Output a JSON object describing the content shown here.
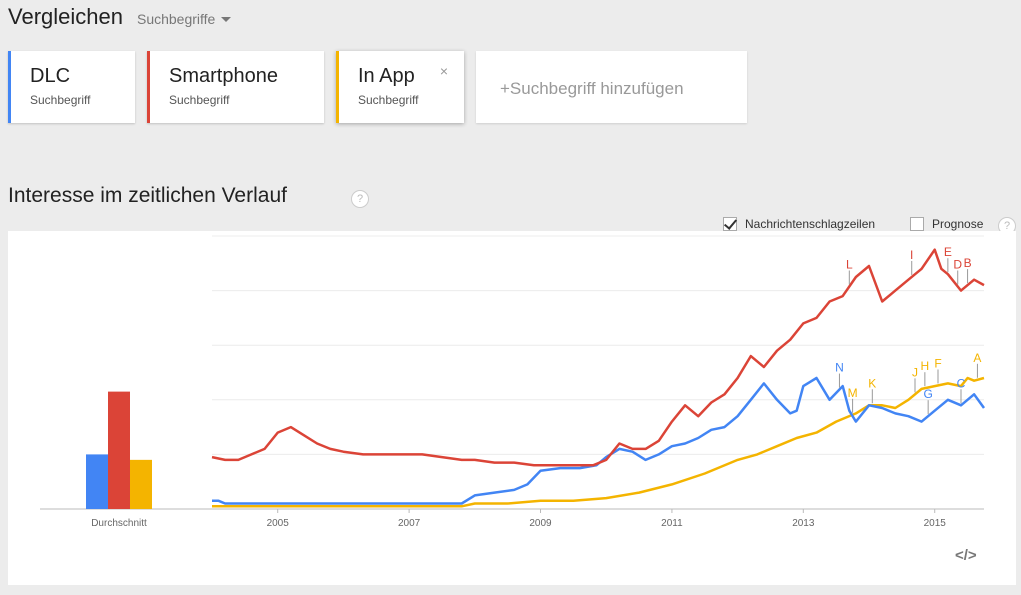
{
  "header": {
    "title": "Vergleichen",
    "mode": "Suchbegriffe"
  },
  "terms": [
    {
      "name": "DLC",
      "kind": "Suchbegriff",
      "color": "#4285f4"
    },
    {
      "name": "Smartphone",
      "kind": "Suchbegriff",
      "color": "#db4437"
    },
    {
      "name": "In App",
      "kind": "Suchbegriff",
      "color": "#f4b400",
      "remove": "×"
    }
  ],
  "add_term": "+Suchbegriff hinzufügen",
  "section": {
    "title": "Interesse im zeitlichen Verlauf",
    "help": "?"
  },
  "options": {
    "headlines": "Nachrichtenschlagzeilen",
    "headlines_checked": true,
    "forecast": "Prognose",
    "forecast_checked": false,
    "help": "?"
  },
  "embed_icon": "</>",
  "chart_data": {
    "type": "line",
    "xlim": [
      2004.0,
      2015.75
    ],
    "ylim": [
      0,
      100
    ],
    "x_ticks": [
      2005,
      2007,
      2009,
      2011,
      2013,
      2015
    ],
    "x_tick_labels": [
      "2005",
      "2007",
      "2009",
      "2011",
      "2013",
      "2015"
    ],
    "grid": true,
    "average": {
      "label": "Durchschnitt",
      "values": [
        20,
        43,
        18
      ]
    },
    "series": [
      {
        "name": "DLC",
        "color": "#4285f4",
        "x": [
          2004.0,
          2004.1,
          2004.2,
          2004.3,
          2004.4,
          2004.6,
          2004.8,
          2005.0,
          2006.0,
          2007.0,
          2007.8,
          2008.0,
          2008.3,
          2008.6,
          2008.8,
          2009.0,
          2009.3,
          2009.6,
          2009.85,
          2010.0,
          2010.2,
          2010.4,
          2010.6,
          2010.8,
          2011.0,
          2011.2,
          2011.4,
          2011.6,
          2011.8,
          2012.0,
          2012.2,
          2012.4,
          2012.6,
          2012.8,
          2012.9,
          2013.0,
          2013.2,
          2013.4,
          2013.6,
          2013.7,
          2013.8,
          2014.0,
          2014.2,
          2014.4,
          2014.6,
          2014.8,
          2015.0,
          2015.2,
          2015.4,
          2015.6,
          2015.75
        ],
        "values": [
          3,
          3,
          2,
          2,
          2,
          2,
          2,
          2,
          2,
          2,
          2,
          5,
          6,
          7,
          9,
          14,
          15,
          15,
          16,
          19,
          22,
          21,
          18,
          20,
          23,
          24,
          26,
          29,
          30,
          34,
          40,
          46,
          40,
          35,
          36,
          45,
          48,
          40,
          45,
          36,
          32,
          38,
          37,
          35,
          34,
          32,
          36,
          40,
          38,
          42,
          37
        ]
      },
      {
        "name": "Smartphone",
        "color": "#db4437",
        "x": [
          2004.0,
          2004.2,
          2004.4,
          2004.6,
          2004.8,
          2005.0,
          2005.2,
          2005.4,
          2005.6,
          2005.8,
          2006.0,
          2006.3,
          2006.6,
          2006.9,
          2007.2,
          2007.5,
          2007.8,
          2008.0,
          2008.3,
          2008.6,
          2008.9,
          2009.2,
          2009.5,
          2009.8,
          2010.0,
          2010.2,
          2010.4,
          2010.6,
          2010.8,
          2011.0,
          2011.2,
          2011.4,
          2011.6,
          2011.8,
          2012.0,
          2012.2,
          2012.4,
          2012.6,
          2012.8,
          2013.0,
          2013.2,
          2013.4,
          2013.6,
          2013.8,
          2014.0,
          2014.2,
          2014.4,
          2014.6,
          2014.8,
          2015.0,
          2015.1,
          2015.2,
          2015.4,
          2015.6,
          2015.75
        ],
        "values": [
          19,
          18,
          18,
          20,
          22,
          28,
          30,
          27,
          24,
          22,
          21,
          20,
          20,
          20,
          20,
          19,
          18,
          18,
          17,
          17,
          16,
          16,
          16,
          16,
          18,
          24,
          22,
          22,
          25,
          32,
          38,
          34,
          39,
          42,
          48,
          56,
          52,
          58,
          62,
          68,
          70,
          76,
          78,
          85,
          89,
          76,
          80,
          84,
          88,
          95,
          88,
          86,
          80,
          84,
          82
        ]
      },
      {
        "name": "In App",
        "color": "#f4b400",
        "x": [
          2004.0,
          2005.0,
          2006.0,
          2007.0,
          2007.8,
          2008.0,
          2008.5,
          2009.0,
          2009.5,
          2010.0,
          2010.5,
          2011.0,
          2011.5,
          2012.0,
          2012.3,
          2012.6,
          2012.9,
          2013.2,
          2013.5,
          2013.8,
          2014.0,
          2014.2,
          2014.4,
          2014.6,
          2014.8,
          2015.0,
          2015.2,
          2015.4,
          2015.5,
          2015.6,
          2015.75
        ],
        "values": [
          1,
          1,
          1,
          1,
          1,
          2,
          2,
          3,
          3,
          4,
          6,
          9,
          13,
          18,
          20,
          23,
          26,
          28,
          32,
          35,
          38,
          38,
          37,
          40,
          44,
          45,
          46,
          45,
          48,
          47,
          48
        ]
      }
    ],
    "annotations": [
      {
        "letter": "L",
        "x": 2013.7,
        "color": "#db4437"
      },
      {
        "letter": "I",
        "x": 2014.65,
        "color": "#db4437"
      },
      {
        "letter": "E",
        "x": 2015.2,
        "color": "#db4437"
      },
      {
        "letter": "D",
        "x": 2015.35,
        "color": "#db4437"
      },
      {
        "letter": "B",
        "x": 2015.5,
        "color": "#db4437"
      },
      {
        "letter": "N",
        "x": 2013.55,
        "color": "#4285f4"
      },
      {
        "letter": "G",
        "x": 2014.9,
        "color": "#4285f4"
      },
      {
        "letter": "C",
        "x": 2015.4,
        "color": "#4285f4"
      },
      {
        "letter": "M",
        "x": 2013.75,
        "color": "#f4b400"
      },
      {
        "letter": "K",
        "x": 2014.05,
        "color": "#f4b400"
      },
      {
        "letter": "J",
        "x": 2014.7,
        "color": "#f4b400"
      },
      {
        "letter": "H",
        "x": 2014.85,
        "color": "#f4b400"
      },
      {
        "letter": "F",
        "x": 2015.05,
        "color": "#f4b400"
      },
      {
        "letter": "A",
        "x": 2015.65,
        "color": "#f4b400"
      }
    ]
  }
}
